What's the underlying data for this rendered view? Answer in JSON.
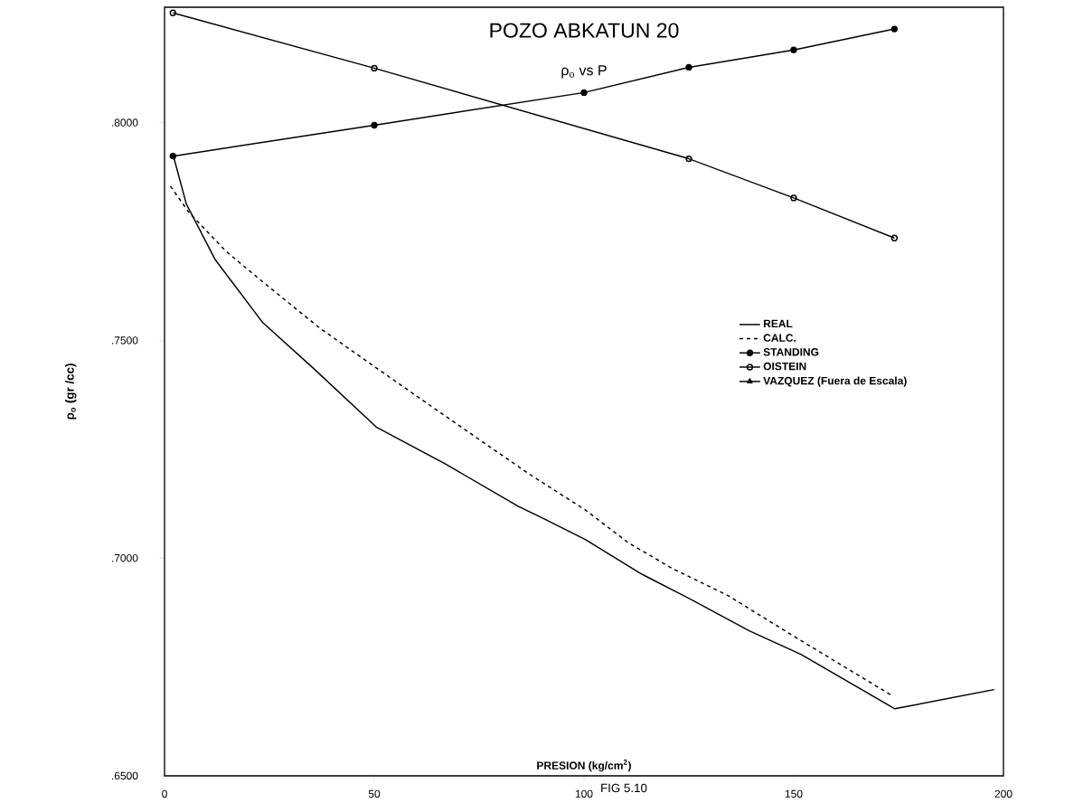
{
  "chart_data": {
    "type": "line",
    "title": "POZO  ABKATUN  20",
    "subtitle": "ρ$_{o}$ vs P",
    "xlabel": "PRESION (kg/cm$^{2}$)",
    "ylabel": "ρ$_{o}$ (gr /cc)",
    "xlim": [
      0,
      200
    ],
    "ylim": [
      0.65,
      0.8265
    ],
    "xticks": [
      0,
      50,
      100,
      150,
      200
    ],
    "yticks": [
      {
        "value": 0.65,
        "label": ".6500"
      },
      {
        "value": 0.7,
        "label": ".7000"
      },
      {
        "value": 0.75,
        "label": ".7500"
      },
      {
        "value": 0.8,
        "label": ".8000"
      }
    ],
    "legend": "right",
    "annotations": [
      "FIG 5.10"
    ],
    "series": [
      {
        "name": "REAL",
        "color": "#000000",
        "line_style": "solid",
        "marker": "none",
        "x": [
          2.1,
          5.2,
          12.1,
          23.3,
          35.8,
          50.6,
          66.8,
          84.3,
          90.1,
          100.4,
          113.8,
          126.1,
          139.4,
          151.7,
          174.1,
          197.8
        ],
        "values": [
          0.7924,
          0.7813,
          0.7685,
          0.7542,
          0.7433,
          0.73,
          0.7217,
          0.7119,
          0.7092,
          0.7042,
          0.6963,
          0.6902,
          0.6833,
          0.6779,
          0.6654,
          0.6698
        ]
      },
      {
        "name": "CALC.",
        "color": "#000000",
        "line_style": "dashed",
        "marker": "none",
        "x": [
          1.4,
          5.8,
          14.7,
          24.6,
          36.9,
          49.4,
          61.9,
          74.6,
          87.1,
          100.4,
          110.6,
          120.9,
          134.5,
          149.6,
          173.3
        ],
        "values": [
          0.7854,
          0.7794,
          0.7704,
          0.7625,
          0.7529,
          0.7444,
          0.736,
          0.7275,
          0.7192,
          0.711,
          0.7035,
          0.6977,
          0.6913,
          0.6823,
          0.6685
        ]
      },
      {
        "name": "STANDING",
        "color": "#000000",
        "line_style": "solid",
        "marker": "*",
        "x": [
          2,
          50,
          100,
          125,
          150,
          174
        ],
        "values": [
          0.7923,
          0.7994,
          0.8069,
          0.8127,
          0.8167,
          0.8215
        ]
      },
      {
        "name": "OISTEIN",
        "color": "#000000",
        "line_style": "solid",
        "marker": "o",
        "x": [
          2,
          50,
          125,
          150,
          174
        ],
        "values": [
          0.8252,
          0.8125,
          0.7917,
          0.7827,
          0.7735
        ]
      },
      {
        "name": "VAZQUEZ (Fuera de Escala)",
        "color": "#000000",
        "line_style": "solid",
        "marker": "triangle"
      }
    ]
  }
}
